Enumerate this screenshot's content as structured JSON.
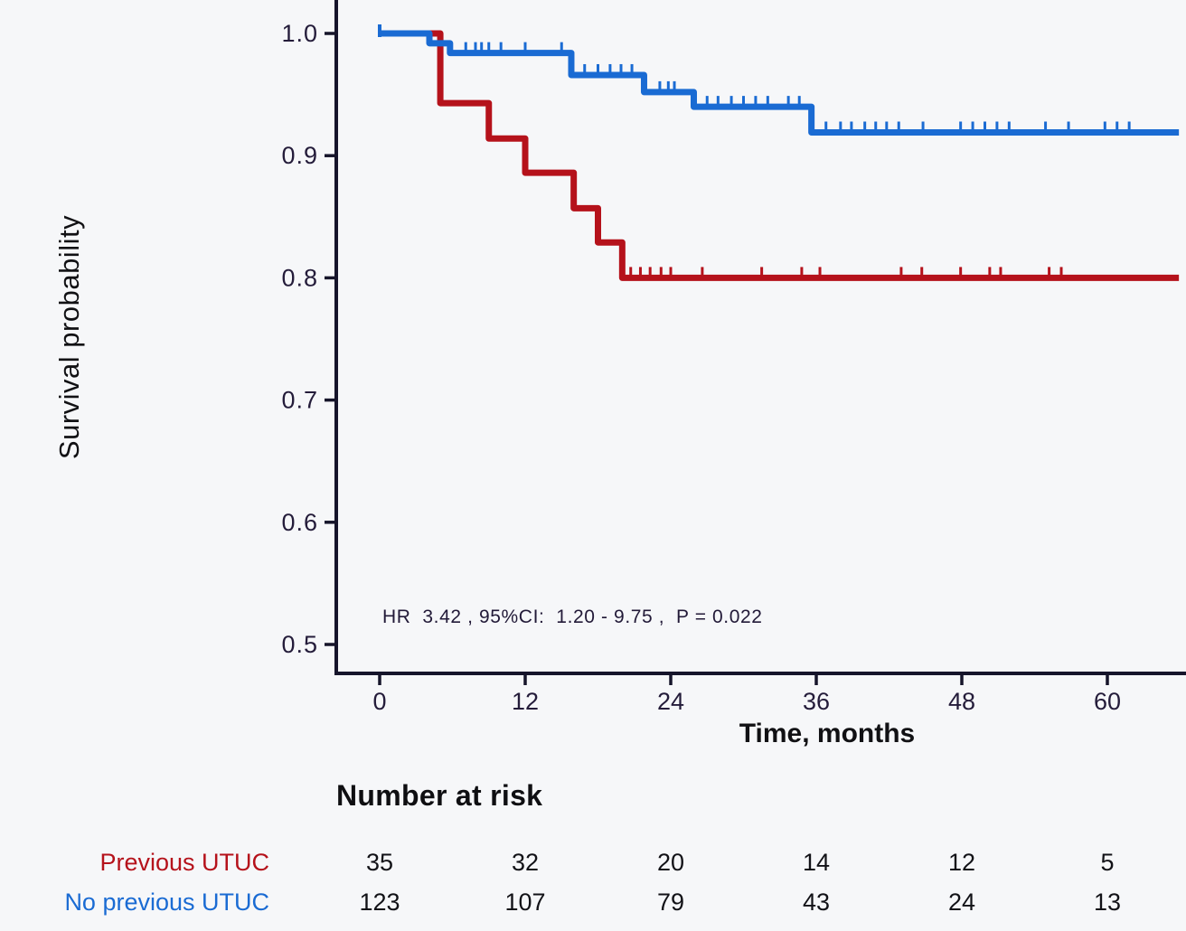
{
  "chart_data": {
    "type": "line",
    "subtype": "kaplan-meier-step",
    "title": "",
    "xlabel": "Time, months",
    "ylabel": "Survival probability",
    "x_ticks": [
      0,
      12,
      24,
      36,
      48,
      60
    ],
    "y_ticks": [
      "1.0",
      "0.9",
      "0.8",
      "0.7",
      "0.6",
      "0.5"
    ],
    "y_tick_values": [
      1.0,
      0.9,
      0.8,
      0.7,
      0.6,
      0.5
    ],
    "xlim": [
      0,
      66.5
    ],
    "ylim": [
      0.477,
      1.027
    ],
    "grid": false,
    "legend_position": "none",
    "annotation": "HR  3.42 , 95%CI:  1.20 - 9.75 ,  P = 0.022",
    "series": [
      {
        "name": "Previous UTUC",
        "color": "#b5121b",
        "steps": [
          {
            "t": 0,
            "s": 1.0
          },
          {
            "t": 5,
            "s": 0.943
          },
          {
            "t": 9,
            "s": 0.914
          },
          {
            "t": 12,
            "s": 0.886
          },
          {
            "t": 16,
            "s": 0.857
          },
          {
            "t": 18,
            "s": 0.829
          },
          {
            "t": 20,
            "s": 0.8
          }
        ],
        "end_t": 65.9,
        "censor_times": [
          20.7,
          21.5,
          22.3,
          23.2,
          24.0,
          26.6,
          31.5,
          34.8,
          36.3,
          43.0,
          44.7,
          47.9,
          50.3,
          51.2,
          55.2,
          56.2
        ]
      },
      {
        "name": "No previous UTUC",
        "color": "#1a6bd3",
        "steps": [
          {
            "t": 0,
            "s": 1.0
          },
          {
            "t": 4.1,
            "s": 0.992
          },
          {
            "t": 5.8,
            "s": 0.984
          },
          {
            "t": 15.8,
            "s": 0.966
          },
          {
            "t": 21.8,
            "s": 0.952
          },
          {
            "t": 25.9,
            "s": 0.94
          },
          {
            "t": 35.6,
            "s": 0.919
          }
        ],
        "end_t": 65.9,
        "censor_times": [
          7.1,
          7.9,
          8.4,
          9.0,
          10.0,
          12.0,
          15.0,
          16.9,
          18.0,
          19.0,
          19.9,
          20.8,
          23.1,
          23.8,
          24.3,
          27.0,
          27.9,
          29.0,
          30.0,
          31.0,
          32.0,
          33.7,
          34.6,
          36.8,
          38.0,
          38.9,
          40.0,
          40.9,
          41.8,
          42.8,
          44.8,
          47.9,
          48.9,
          49.9,
          50.9,
          51.9,
          54.9,
          56.8,
          59.8,
          60.8,
          61.8
        ]
      }
    ]
  },
  "number_at_risk": {
    "title": "Number at risk",
    "times": [
      0,
      12,
      24,
      36,
      48,
      60
    ],
    "rows": [
      {
        "label": "Previous UTUC",
        "color": "#b5121b",
        "counts": [
          "35",
          "32",
          "20",
          "14",
          "12",
          "5"
        ]
      },
      {
        "label": "No previous UTUC",
        "color": "#1a6bd3",
        "counts": [
          "123",
          "107",
          "79",
          "43",
          "24",
          "13"
        ]
      }
    ]
  }
}
